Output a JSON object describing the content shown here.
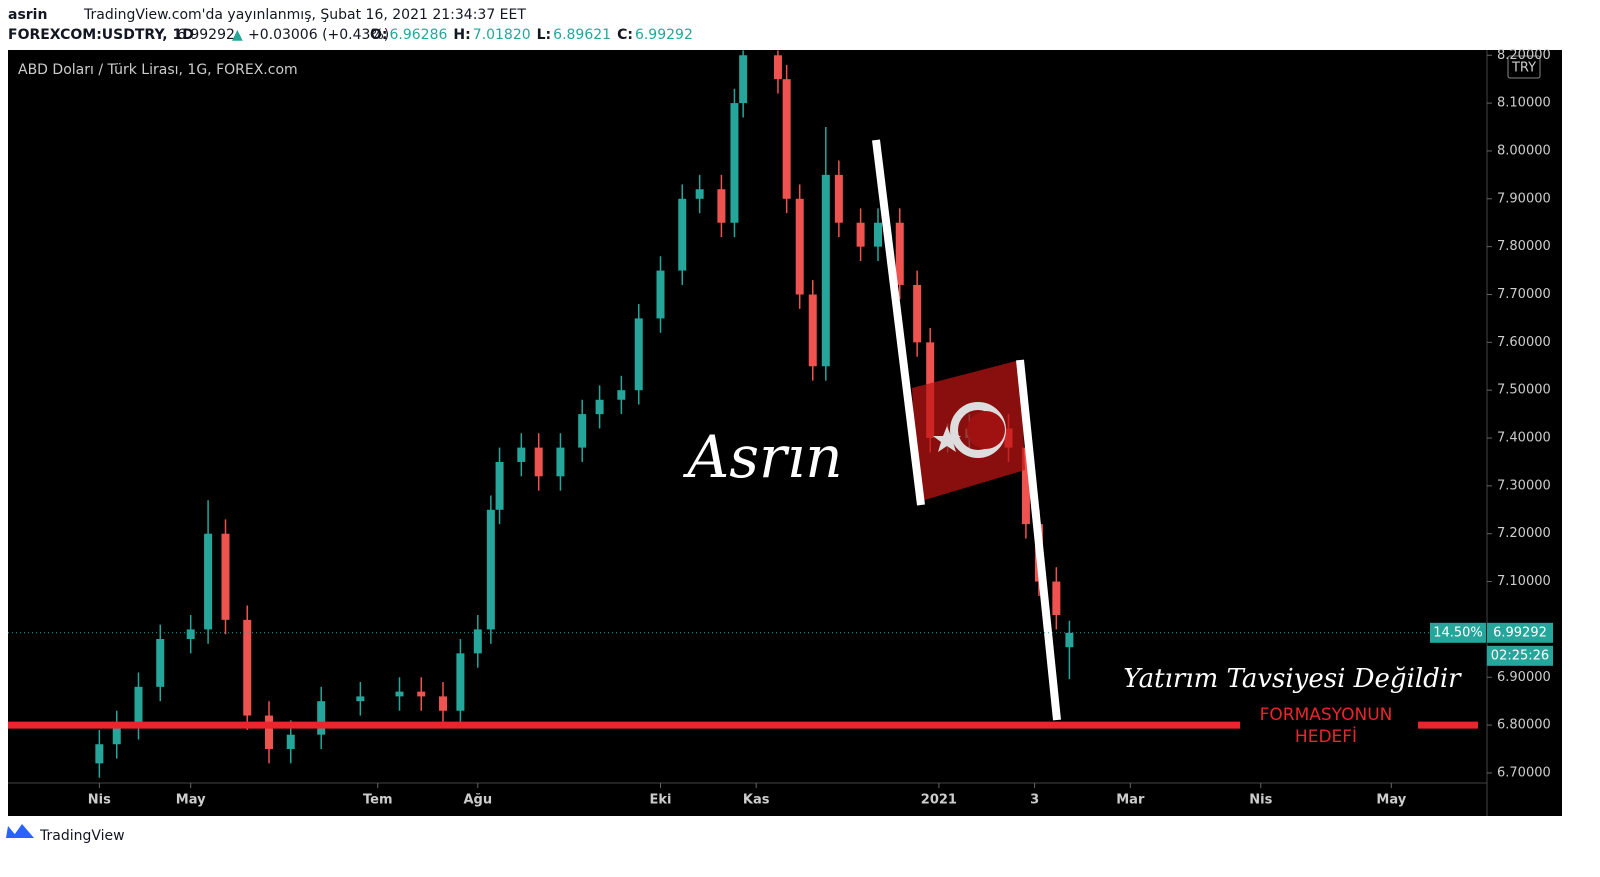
{
  "header": {
    "user": "asrin",
    "published": "TradingView.com'da yayınlanmış, Şubat 16, 2021 21:34:37 EET",
    "symbol": "FOREXCOM:USDTRY, 1D",
    "last": "6.99292",
    "arrow": "▲",
    "change": "+0.03006 (+0.43%)",
    "ohlc": [
      {
        "label": "O:",
        "value": "6.96286"
      },
      {
        "label": "H:",
        "value": "7.01820"
      },
      {
        "label": "L:",
        "value": "6.89621"
      },
      {
        "label": "C:",
        "value": "6.99292"
      }
    ]
  },
  "chart_data": {
    "type": "candlestick",
    "title": "ABD Doları / Türk Lirası, 1G, FOREX.com",
    "currency": "TRY",
    "up_color": "#26a69a",
    "down_color": "#ef5350",
    "x": [
      21,
      25,
      30,
      35,
      42,
      46,
      50,
      55,
      60,
      65,
      72,
      81,
      90,
      95,
      100,
      104,
      108,
      111,
      113,
      118,
      122,
      127,
      132,
      136,
      141,
      145,
      150,
      155,
      159,
      164,
      167,
      169,
      177,
      179,
      182,
      185,
      188,
      191,
      196,
      200,
      205,
      209,
      212,
      216,
      221,
      225,
      230,
      234,
      237,
      241,
      244
    ],
    "open": [
      6.72,
      6.76,
      6.8,
      6.88,
      6.98,
      7.0,
      7.2,
      7.02,
      6.82,
      6.75,
      6.78,
      6.85,
      6.86,
      6.87,
      6.86,
      6.83,
      6.95,
      7.0,
      7.25,
      7.35,
      7.38,
      7.32,
      7.38,
      7.45,
      7.48,
      7.5,
      7.65,
      7.75,
      7.9,
      7.92,
      7.85,
      8.1,
      8.2,
      8.15,
      7.9,
      7.7,
      7.55,
      7.95,
      7.85,
      7.8,
      7.85,
      7.72,
      7.6,
      7.4,
      7.4,
      7.42,
      7.42,
      7.38,
      7.22,
      7.1,
      6.96286
    ],
    "high": [
      6.79,
      6.83,
      6.91,
      7.01,
      7.03,
      7.27,
      7.23,
      7.05,
      6.85,
      6.81,
      6.88,
      6.89,
      6.9,
      6.9,
      6.89,
      6.98,
      7.03,
      7.28,
      7.38,
      7.41,
      7.41,
      7.41,
      7.48,
      7.51,
      7.53,
      7.68,
      7.78,
      7.93,
      7.95,
      7.95,
      8.13,
      8.21,
      8.21,
      8.18,
      7.93,
      7.73,
      8.05,
      7.98,
      7.88,
      7.88,
      7.88,
      7.75,
      7.63,
      7.43,
      7.45,
      7.45,
      7.45,
      7.41,
      7.25,
      7.13,
      7.0182
    ],
    "low": [
      6.69,
      6.73,
      6.77,
      6.85,
      6.95,
      6.97,
      6.99,
      6.79,
      6.72,
      6.72,
      6.75,
      6.82,
      6.83,
      6.83,
      6.8,
      6.8,
      6.92,
      6.97,
      7.22,
      7.32,
      7.29,
      7.29,
      7.35,
      7.42,
      7.45,
      7.47,
      7.62,
      7.72,
      7.87,
      7.82,
      7.82,
      8.07,
      8.12,
      7.87,
      7.67,
      7.52,
      7.52,
      7.82,
      7.77,
      7.77,
      7.69,
      7.57,
      7.37,
      7.37,
      7.37,
      7.39,
      7.35,
      7.19,
      7.07,
      7.0,
      6.89621
    ],
    "close": [
      6.76,
      6.8,
      6.88,
      6.98,
      7.0,
      7.2,
      7.02,
      6.82,
      6.75,
      6.78,
      6.85,
      6.86,
      6.87,
      6.86,
      6.83,
      6.95,
      7.0,
      7.25,
      7.35,
      7.38,
      7.32,
      7.38,
      7.45,
      7.48,
      7.5,
      7.65,
      7.75,
      7.9,
      7.92,
      7.85,
      8.1,
      8.2,
      8.15,
      7.9,
      7.7,
      7.55,
      7.95,
      7.85,
      7.8,
      7.85,
      7.72,
      7.6,
      7.4,
      7.4,
      7.42,
      7.42,
      7.38,
      7.22,
      7.1,
      7.03,
      6.99292
    ],
    "xlim": [
      0,
      340
    ],
    "xticks": [
      {
        "value": 21,
        "label": "Nis"
      },
      {
        "value": 42,
        "label": "May"
      },
      {
        "value": 85,
        "label": "Tem"
      },
      {
        "value": 108,
        "label": "Ağu"
      },
      {
        "value": 150,
        "label": "Eki"
      },
      {
        "value": 172,
        "label": "Kas"
      },
      {
        "value": 214,
        "label": "2021"
      },
      {
        "value": 236,
        "label": "3"
      },
      {
        "value": 258,
        "label": "Mar"
      },
      {
        "value": 288,
        "label": "Nis"
      },
      {
        "value": 318,
        "label": "May"
      }
    ],
    "ylim": [
      6.679,
      8.211
    ],
    "yticks": [
      {
        "value": 6.7,
        "label": "6.70000"
      },
      {
        "value": 6.8,
        "label": "6.80000"
      },
      {
        "value": 6.9,
        "label": "6.90000"
      },
      {
        "value": 7.0,
        "label": "7.00000"
      },
      {
        "value": 7.1,
        "label": "7.10000"
      },
      {
        "value": 7.2,
        "label": "7.20000"
      },
      {
        "value": 7.3,
        "label": "7.30000"
      },
      {
        "value": 7.4,
        "label": "7.40000"
      },
      {
        "value": 7.5,
        "label": "7.50000"
      },
      {
        "value": 7.6,
        "label": "7.60000"
      },
      {
        "value": 7.7,
        "label": "7.70000"
      },
      {
        "value": 7.8,
        "label": "7.80000"
      },
      {
        "value": 7.9,
        "label": "7.90000"
      },
      {
        "value": 8.0,
        "label": "8.00000"
      },
      {
        "value": 8.1,
        "label": "8.10000"
      },
      {
        "value": 8.2,
        "label": "8.20000"
      }
    ],
    "target": {
      "value": 6.8,
      "color": "#e8262b",
      "label": [
        "FORMASYONUN",
        "HEDEFİ"
      ]
    },
    "price_tag": {
      "value": 6.99292,
      "change": "14.50%",
      "countdown": "02:25:26"
    },
    "signature": "Asrın",
    "disclaimer": "Yatırım Tavsiyesi Değildir"
  },
  "footer": "TradingView"
}
